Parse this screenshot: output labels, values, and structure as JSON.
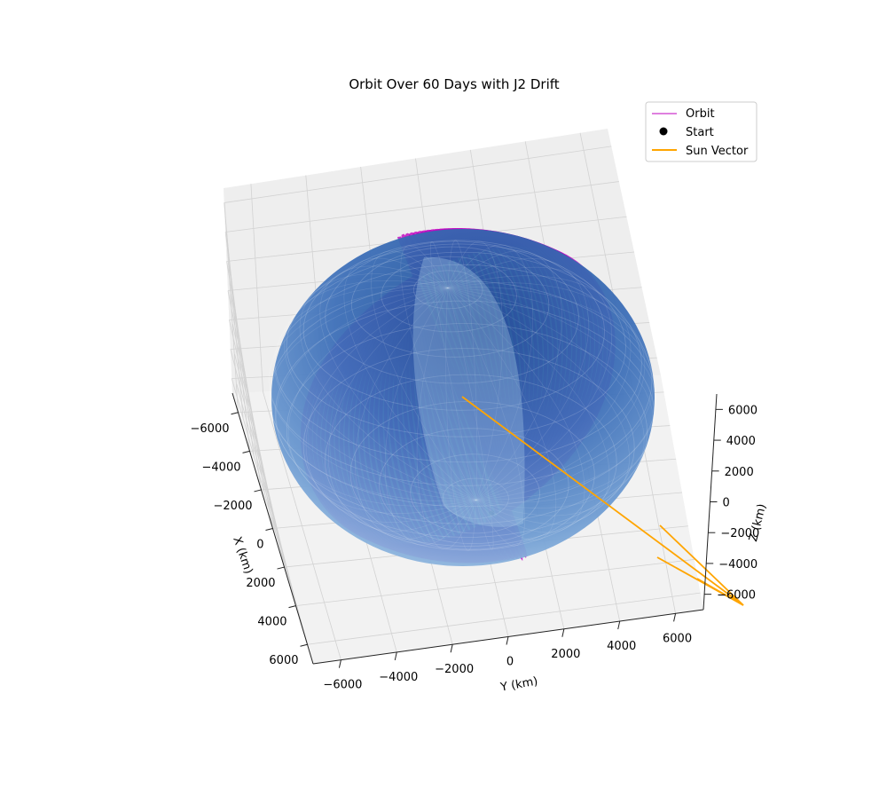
{
  "chart_data": {
    "type": "3d-line",
    "title": "Orbit Over 60 Days with J2 Drift",
    "xlabel": "X (km)",
    "ylabel": "Y (km)",
    "zlabel": "Z (km)",
    "xlim": [
      -7000,
      7000
    ],
    "ylim": [
      -7000,
      7000
    ],
    "zlim": [
      -7000,
      7000
    ],
    "x_ticks": [
      -6000,
      -4000,
      -2000,
      0,
      2000,
      4000,
      6000
    ],
    "y_ticks": [
      -6000,
      -4000,
      -2000,
      0,
      2000,
      4000,
      6000
    ],
    "z_ticks": [
      -6000,
      -4000,
      -2000,
      0,
      2000,
      4000,
      6000
    ],
    "x_tick_labels": [
      "−6000",
      "−4000",
      "−2000",
      "0",
      "2000",
      "4000",
      "6000"
    ],
    "y_tick_labels": [
      "−6000",
      "−4000",
      "−2000",
      "0",
      "2000",
      "4000",
      "6000"
    ],
    "z_tick_labels": [
      "−6000",
      "−4000",
      "−2000",
      "0",
      "2000",
      "4000",
      "6000"
    ],
    "grid": true,
    "legend_position": "top-right",
    "legend": [
      {
        "label": "Orbit",
        "marker": "line",
        "color": "#bf00bf"
      },
      {
        "label": "Start",
        "marker": "dot",
        "color": "#000000"
      },
      {
        "label": "Sun Vector",
        "marker": "line",
        "color": "#ffa500"
      }
    ],
    "earth": {
      "radius_km": 6371,
      "color": "#1f77b4"
    },
    "orbit": {
      "radius_km": 6800,
      "inclination_deg": 98,
      "days": 60,
      "color": "#bf00bf"
    },
    "sun_vector": {
      "color": "#ffa500"
    }
  }
}
